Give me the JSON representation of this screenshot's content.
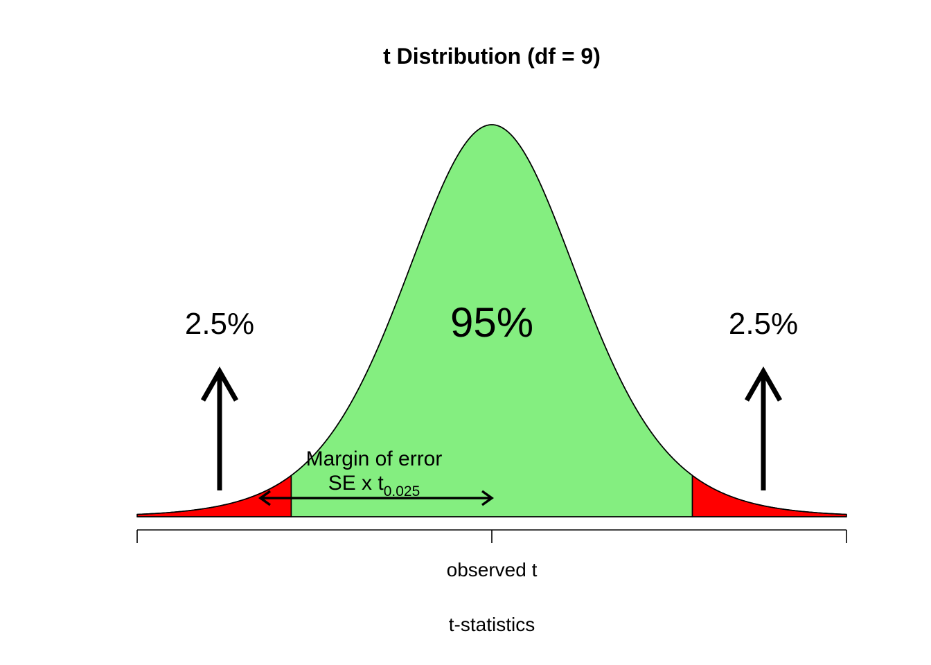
{
  "chart_data": {
    "type": "area",
    "title": "t Distribution (df = 9)",
    "xlabel": "t-statistics",
    "ylabel": "",
    "df": 9,
    "xlim": [
      -4,
      4
    ],
    "critical_value": 2.262,
    "center_tick_label": "observed t",
    "regions": [
      {
        "name": "lower-tail",
        "from": -4,
        "to": -2.262,
        "color": "#ff0000",
        "label": "2.5%"
      },
      {
        "name": "middle",
        "from": -2.262,
        "to": 2.262,
        "color": "#84ee80",
        "label": "95%"
      },
      {
        "name": "upper-tail",
        "from": 2.262,
        "to": 4,
        "color": "#ff0000",
        "label": "2.5%"
      }
    ],
    "annotations": {
      "left_pct": "2.5%",
      "center_pct": "95%",
      "right_pct": "2.5%",
      "margin_title": "Margin of error",
      "margin_formula_main": "SE x t",
      "margin_formula_sub": "0.025"
    },
    "grid": false,
    "legend": "none"
  }
}
